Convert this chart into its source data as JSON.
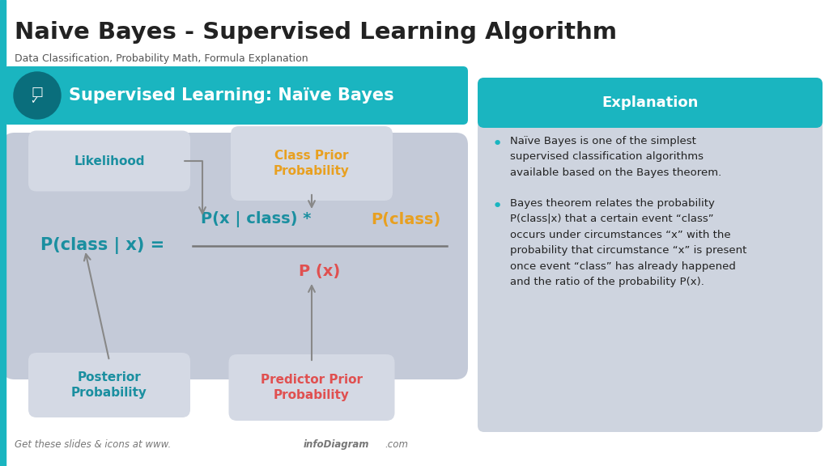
{
  "title": "Naive Bayes - Supervised Learning Algorithm",
  "subtitle": "Data Classification, Probability Math, Formula Explanation",
  "left_header": "Supervised Learning: Naïve Bayes",
  "right_header": "Explanation",
  "teal_color": "#1ab5c0",
  "teal_dark": "#0d8fa0",
  "orange_color": "#e8a020",
  "red_color": "#e05050",
  "dark_teal_text": "#1a8fa0",
  "label_bg": "#d4d9e4",
  "formula_bg": "#c4cad8",
  "right_panel_bg": "#ced4df",
  "white": "#ffffff",
  "black": "#222222",
  "grey_text": "#666666",
  "footer_text": "Get these slides & icons at www.",
  "footer_bold": "infoDiagram",
  "footer_end": ".com",
  "bullet1_lines": [
    "Naïve Bayes is one of the simplest",
    "supervised classification algorithms",
    "available based on the Bayes theorem."
  ],
  "bullet2_lines": [
    "Bayes theorem relates the probability",
    "P(class|x) that a certain event “class”",
    "occurs under circumstances “x” with the",
    "probability that circumstance “x” is present",
    "once event “class” has already happened",
    "and the ratio of the probability P(x)."
  ],
  "label_likelihood": "Likelihood",
  "label_class_prior": "Class Prior\nProbability",
  "label_posterior": "Posterior\nProbability",
  "label_predictor": "Predictor Prior\nProbability"
}
